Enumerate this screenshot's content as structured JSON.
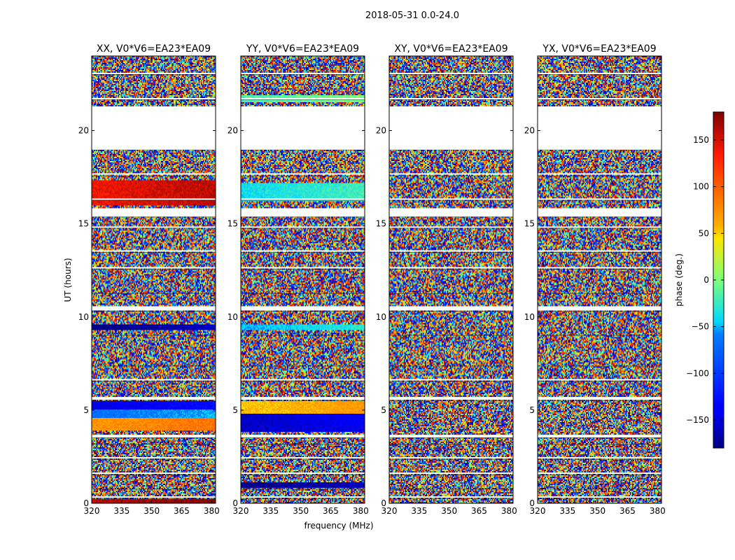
{
  "figure": {
    "suptitle": "2018-05-31 0.0-24.0"
  },
  "chart_data": {
    "type": "heatmap",
    "title": "2018-05-31 0.0-24.0",
    "xlabel": "frequency (MHz)",
    "ylabel": "UT (hours)",
    "xlim": [
      320,
      382
    ],
    "ylim": [
      0,
      24
    ],
    "x_ticks": [
      320,
      335,
      350,
      365,
      380
    ],
    "y_ticks": [
      0,
      5,
      10,
      15,
      20
    ],
    "panels": [
      {
        "title": "XX, V0*V6=EA23*EA09",
        "pol": "XX"
      },
      {
        "title": "YY, V0*V6=EA23*EA09",
        "pol": "YY"
      },
      {
        "title": "XY, V0*V6=EA23*EA09",
        "pol": "XY"
      },
      {
        "title": "YX, V0*V6=EA23*EA09",
        "pol": "YX"
      }
    ],
    "flagged_ut_ranges": [
      [
        19.0,
        21.3
      ],
      [
        15.4,
        15.8
      ],
      [
        10.35,
        10.55
      ],
      [
        5.55,
        5.68
      ],
      [
        3.55,
        3.68
      ],
      [
        23.05,
        23.12
      ],
      [
        21.7,
        21.75
      ],
      [
        17.6,
        17.68
      ],
      [
        16.3,
        16.36
      ],
      [
        14.8,
        14.86
      ],
      [
        13.5,
        13.55
      ],
      [
        12.6,
        12.65
      ],
      [
        11.3,
        11.36
      ],
      [
        9.05,
        9.1
      ],
      [
        7.4,
        7.45
      ],
      [
        6.6,
        6.66
      ],
      [
        3.2,
        3.25
      ],
      [
        2.4,
        2.45
      ],
      [
        1.55,
        1.62
      ],
      [
        0.8,
        0.86
      ],
      [
        0.3,
        0.34
      ]
    ],
    "coherent_bands": [
      {
        "panel": "XX",
        "ut": [
          16.0,
          17.3
        ],
        "phase": 150
      },
      {
        "panel": "XX",
        "ut": [
          9.3,
          9.6
        ],
        "phase": -170
      },
      {
        "panel": "XX",
        "ut": [
          5.0,
          5.5
        ],
        "phase": -140
      },
      {
        "panel": "XX",
        "ut": [
          4.6,
          5.0
        ],
        "phase": -60
      },
      {
        "panel": "XX",
        "ut": [
          3.9,
          4.6
        ],
        "phase": 80
      },
      {
        "panel": "XX",
        "ut": [
          0.0,
          0.2
        ],
        "phase": 170
      },
      {
        "panel": "YY",
        "ut": [
          16.2,
          17.2
        ],
        "phase": -30
      },
      {
        "panel": "YY",
        "ut": [
          9.3,
          9.6
        ],
        "phase": -40
      },
      {
        "panel": "YY",
        "ut": [
          4.8,
          5.5
        ],
        "phase": 60
      },
      {
        "panel": "YY",
        "ut": [
          3.8,
          4.8
        ],
        "phase": -150
      },
      {
        "panel": "YY",
        "ut": [
          0.8,
          1.1
        ],
        "phase": -170
      },
      {
        "panel": "YY",
        "ut": [
          21.5,
          21.9
        ],
        "phase": -10
      }
    ],
    "colorbar": {
      "label": "phase (deg.)",
      "range": [
        -180,
        180
      ],
      "ticks": [
        150,
        100,
        50,
        0,
        -50,
        -100,
        -150
      ],
      "tick_labels": [
        "150",
        "100",
        "50",
        "0",
        "−50",
        "−100",
        "−150"
      ],
      "colormap": "jet"
    }
  }
}
